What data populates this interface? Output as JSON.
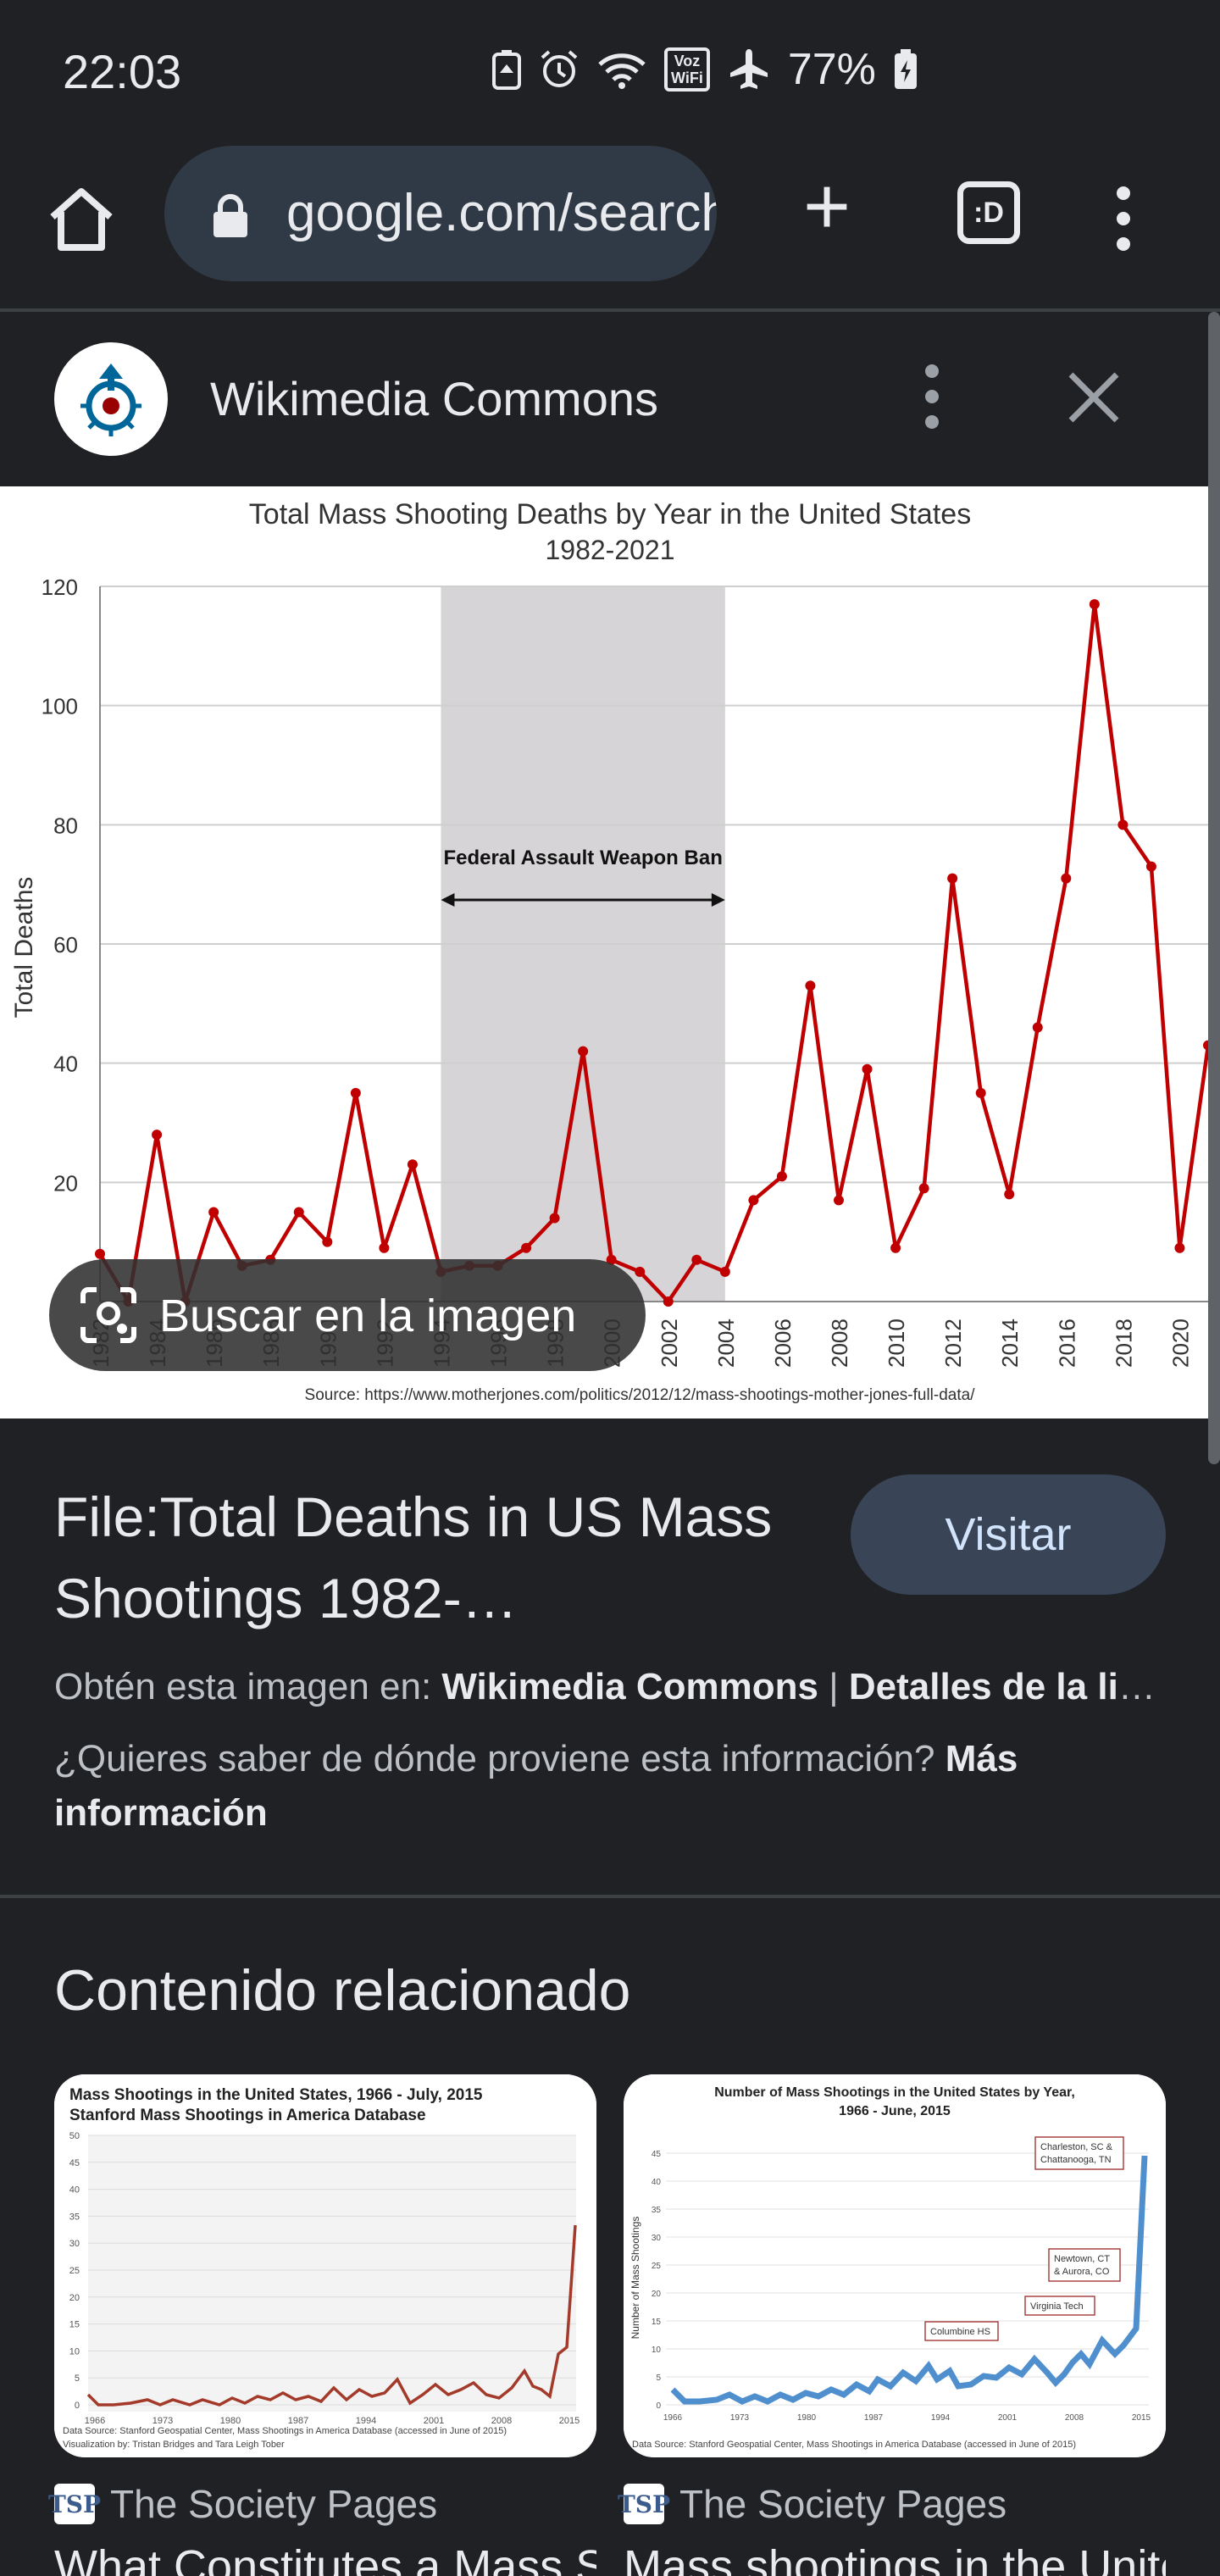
{
  "status_bar": {
    "time": "22:03",
    "battery": "77%",
    "voz_top": "Voz",
    "voz_bottom": "WiFi",
    "icons": [
      "battery-saver-icon",
      "alarm-icon",
      "wifi-icon",
      "voz-wifi-icon",
      "airplane-icon",
      "battery-charging-icon"
    ]
  },
  "browser": {
    "url": "google.com/search",
    "tab_label": ":D"
  },
  "panel": {
    "site_name": "Wikimedia Commons"
  },
  "chart_data": {
    "type": "line",
    "title": "Total Mass Shooting Deaths by Year in the United States",
    "subtitle": "1982-2021",
    "ylabel": "Total Deaths",
    "ylim": [
      0,
      120
    ],
    "yticks": [
      20,
      40,
      60,
      80,
      100,
      120
    ],
    "x": [
      1982,
      1983,
      1984,
      1985,
      1986,
      1987,
      1988,
      1989,
      1990,
      1991,
      1992,
      1993,
      1994,
      1995,
      1996,
      1997,
      1998,
      1999,
      2000,
      2001,
      2002,
      2003,
      2004,
      2005,
      2006,
      2007,
      2008,
      2009,
      2010,
      2011,
      2012,
      2013,
      2014,
      2015,
      2016,
      2017,
      2018,
      2019,
      2020,
      2021
    ],
    "values": [
      8,
      0,
      28,
      0,
      15,
      6,
      7,
      15,
      10,
      35,
      9,
      23,
      5,
      6,
      6,
      9,
      14,
      42,
      7,
      5,
      0,
      7,
      5,
      17,
      21,
      53,
      17,
      39,
      9,
      19,
      71,
      35,
      18,
      46,
      71,
      117,
      80,
      73,
      9,
      43
    ],
    "xticks": [
      "1982",
      "1984",
      "1986",
      "1988",
      "1990",
      "1992",
      "1994",
      "1996",
      "1998",
      "2000",
      "2002",
      "2004",
      "2006",
      "2008",
      "2010",
      "2012",
      "2014",
      "2016",
      "2018",
      "2020"
    ],
    "annotation": {
      "label": "Federal Assault Weapon Ban",
      "from": 1994,
      "to": 2004
    },
    "source": "Source: https://www.motherjones.com/politics/2012/12/mass-shootings-mother-jones-full-data/",
    "series_color": "#c00000",
    "shade_color": "#d6d4d6",
    "grid": true
  },
  "lens_button": {
    "label": "Buscar en la imagen"
  },
  "result": {
    "title": "File:Total Deaths in US Mass Shootings 1982-…",
    "visit_label": "Visitar",
    "source_prefix": "Obtén esta imagen en: ",
    "source_site": "Wikimedia Commons",
    "source_sep": " | ",
    "source_details": "Detalles de la licencia",
    "question": "¿Quieres saber de dónde proviene esta información? ",
    "more_info": "Más información"
  },
  "related": {
    "heading": "Contenido relacionado",
    "cards": [
      {
        "source": "The Society Pages",
        "title": "What Constitutes a Mass Shooting",
        "thumb_title1": "Mass Shootings in the United States, 1966 - July, 2015",
        "thumb_title2": "Stanford Mass Shootings in America Database",
        "thumb_footer1": "Data Source: Stanford Geospatial Center, Mass Shootings in America Database (accessed in June of 2015)",
        "thumb_footer2": "Visualization by: Tristan Bridges and Tara Leigh Tober",
        "thumb_xticks": [
          "1966",
          "1973",
          "1980",
          "1987",
          "1994",
          "2001",
          "2008",
          "2015"
        ],
        "thumb_yticks": [
          "0",
          "5",
          "10",
          "15",
          "20",
          "25",
          "30",
          "35",
          "40",
          "45",
          "50"
        ]
      },
      {
        "source": "The Society Pages",
        "title": "Mass shootings in the United States",
        "thumb_title1": "Number of Mass Shootings in the United States by Year,",
        "thumb_title2": "1966 - June, 2015",
        "thumb_ylabel": "Number of Mass Shootings",
        "thumb_footer1": "Data Source: Stanford Geospatial Center, Mass Shootings in America Database (accessed in June of 2015)",
        "thumb_callouts": [
          "Charleston, SC &",
          "Chattanooga, TN",
          "Newtown, CT",
          "& Aurora, CO",
          "Virginia Tech",
          "Columbine HS"
        ],
        "thumb_xticks": [
          "1966",
          "1973",
          "1980",
          "1987",
          "1994",
          "2001",
          "2008",
          "2015"
        ],
        "thumb_yticks": [
          "0",
          "5",
          "10",
          "15",
          "20",
          "25",
          "30",
          "35",
          "40",
          "45"
        ]
      }
    ]
  }
}
